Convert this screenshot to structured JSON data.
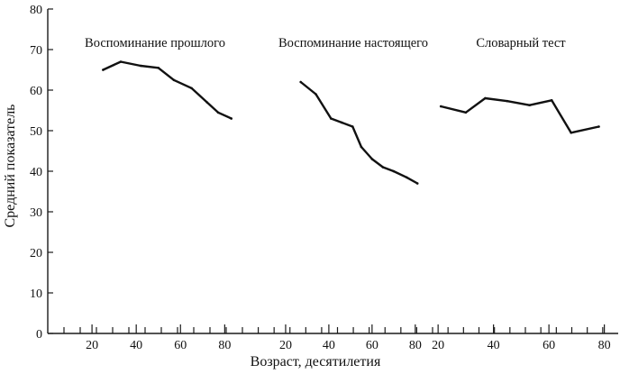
{
  "chart_data": {
    "type": "line",
    "ylabel": "Средний показатель",
    "xlabel": "Возраст, десятилетия",
    "ylim": [
      0,
      80
    ],
    "y_ticks": [
      0,
      10,
      20,
      30,
      40,
      50,
      60,
      70,
      80
    ],
    "x_tick_labels": [
      "20",
      "40",
      "60",
      "80"
    ],
    "x_tick_values": [
      20,
      40,
      60,
      80
    ],
    "grid": false,
    "legend": "none",
    "color": "#111111",
    "panels": [
      {
        "title": "Воспоминание прошлого",
        "xlim": [
          0,
          88
        ],
        "x": [
          25,
          33,
          42,
          50,
          57,
          65,
          72,
          77,
          83
        ],
        "y": [
          65,
          67,
          66,
          65.5,
          62.5,
          60.5,
          57,
          54.5,
          53
        ]
      },
      {
        "title": "Воспоминание настоящего",
        "xlim": [
          0,
          88
        ],
        "x": [
          27,
          34,
          41,
          46,
          51,
          55,
          60,
          65,
          70,
          76,
          81
        ],
        "y": [
          62,
          59,
          53,
          52,
          51,
          46,
          43,
          41,
          40,
          38.5,
          37
        ]
      },
      {
        "title": "Словарный тест",
        "xlim": [
          18,
          85
        ],
        "x": [
          21,
          30,
          37,
          45,
          53,
          61,
          68,
          78
        ],
        "y": [
          56,
          54.5,
          58,
          57.3,
          56.3,
          57.5,
          49.5,
          51
        ]
      }
    ]
  }
}
